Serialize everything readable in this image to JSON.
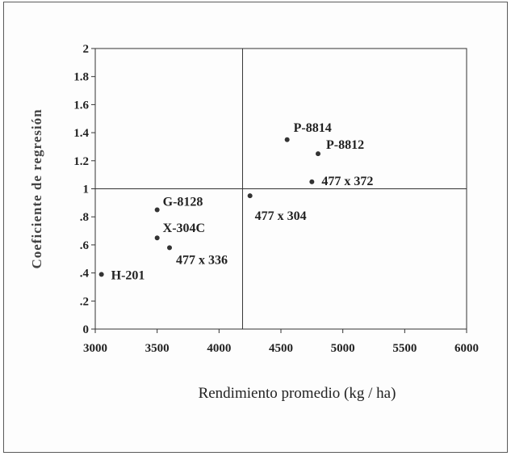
{
  "chart_data": {
    "type": "scatter",
    "xlabel": "Rendimiento promedio (kg / ha)",
    "ylabel": "Coeficiente de regresión",
    "xlim": [
      3000,
      6000
    ],
    "ylim": [
      0,
      2
    ],
    "x_ticks": [
      3000,
      3500,
      4000,
      4500,
      5000,
      5500,
      6000
    ],
    "x_tick_labels": [
      "3000",
      "3500",
      "4000",
      "4500",
      "5000",
      "5500",
      "6000"
    ],
    "y_ticks": [
      0,
      0.2,
      0.4,
      0.6,
      0.8,
      1,
      1.2,
      1.4,
      1.6,
      1.8,
      2
    ],
    "y_tick_labels": [
      "0",
      ".2",
      ".4",
      ".6",
      ".8",
      "1",
      "1.2",
      "1.4",
      "1.6",
      "1.8",
      "2"
    ],
    "reference_lines": {
      "x": 4190,
      "y": 1
    },
    "grid": false,
    "points": [
      {
        "label": "H-201",
        "x": 3050,
        "y": 0.39
      },
      {
        "label": "X-304C",
        "x": 3500,
        "y": 0.65
      },
      {
        "label": "G-8128",
        "x": 3500,
        "y": 0.85
      },
      {
        "label": "477 x 336",
        "x": 3600,
        "y": 0.58
      },
      {
        "label": "477 x 304",
        "x": 4250,
        "y": 0.95
      },
      {
        "label": "P-8814",
        "x": 4550,
        "y": 1.35
      },
      {
        "label": "477 x 372",
        "x": 4750,
        "y": 1.05
      },
      {
        "label": "P-8812",
        "x": 4800,
        "y": 1.25
      }
    ]
  }
}
